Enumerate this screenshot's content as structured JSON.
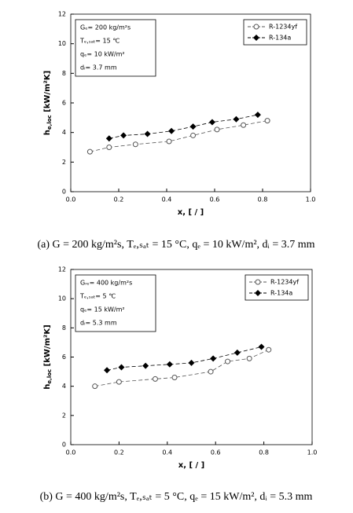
{
  "chart_data": [
    {
      "type": "line",
      "ylabel": "h",
      "ylabel_sub": "e,loc",
      "ylabel_rest": " [kW/m²K]",
      "xlabel": "x, [ / ]",
      "annotation": [
        "Gₑ= 200 kg/m²s",
        "Tₑ,ₛₐₜ= 15 ℃",
        "qₑ= 10 kW/m²",
        "dᵢ= 3.7 mm"
      ],
      "caption": "(a) G = 200 kg/m²s, Tₑ,ₛₐₜ = 15 °C, qₑ = 10 kW/m², dᵢ = 3.7 mm",
      "xlim": [
        0,
        1
      ],
      "xticks": [
        {
          "value": 0,
          "label": "0.0"
        },
        0.2,
        0.4,
        0.6,
        0.8,
        {
          "value": 1,
          "label": "1.0"
        }
      ],
      "ylim": [
        0,
        12
      ],
      "yticks": [
        0,
        2,
        4,
        6,
        8,
        10,
        12
      ],
      "legend": "upper right",
      "series": [
        {
          "name": "R-1234yf",
          "color": "#555555",
          "marker": "circle-open",
          "x": [
            0.08,
            0.16,
            0.27,
            0.41,
            0.51,
            0.61,
            0.72,
            0.82
          ],
          "values": [
            2.7,
            3.0,
            3.2,
            3.4,
            3.8,
            4.2,
            4.5,
            4.8
          ]
        },
        {
          "name": "R-134a",
          "color": "#000000",
          "marker": "diamond-filled",
          "x": [
            0.16,
            0.22,
            0.32,
            0.42,
            0.51,
            0.59,
            0.69,
            0.78
          ],
          "values": [
            3.6,
            3.8,
            3.9,
            4.1,
            4.4,
            4.7,
            4.9,
            5.2
          ]
        }
      ]
    },
    {
      "type": "line",
      "ylabel": "h",
      "ylabel_sub": "e,loc",
      "ylabel_rest": " [kW/m²K]",
      "xlabel": "x, [ / ]",
      "annotation": [
        "Gᵣₑ= 400 kg/m²s",
        "Tₑ,ₛₐₜ= 5 ℃",
        "qₑ= 15 kW/m²",
        "dᵢ= 5.3 mm"
      ],
      "caption": "(b) G = 400 kg/m²s, Tₑ,ₛₐₜ = 5 °C, qₑ = 15 kW/m², dᵢ = 5.3 mm",
      "xlim": [
        0,
        1
      ],
      "xticks": [
        {
          "value": 0,
          "label": "0.0"
        },
        0.2,
        0.4,
        0.6,
        0.8,
        {
          "value": 1,
          "label": "1.0"
        }
      ],
      "ylim": [
        0,
        12
      ],
      "yticks": [
        0,
        2,
        4,
        6,
        8,
        10,
        12
      ],
      "legend": "upper right",
      "series": [
        {
          "name": "R-1234yf",
          "color": "#555555",
          "marker": "circle-open",
          "x": [
            0.1,
            0.2,
            0.35,
            0.43,
            0.58,
            0.65,
            0.74,
            0.82
          ],
          "values": [
            4.0,
            4.3,
            4.5,
            4.6,
            5.0,
            5.7,
            5.9,
            6.5
          ]
        },
        {
          "name": "R-134a",
          "color": "#000000",
          "marker": "diamond-filled",
          "x": [
            0.15,
            0.21,
            0.31,
            0.41,
            0.5,
            0.59,
            0.69,
            0.79
          ],
          "values": [
            5.1,
            5.3,
            5.4,
            5.5,
            5.6,
            5.9,
            6.3,
            6.7
          ]
        }
      ]
    }
  ]
}
